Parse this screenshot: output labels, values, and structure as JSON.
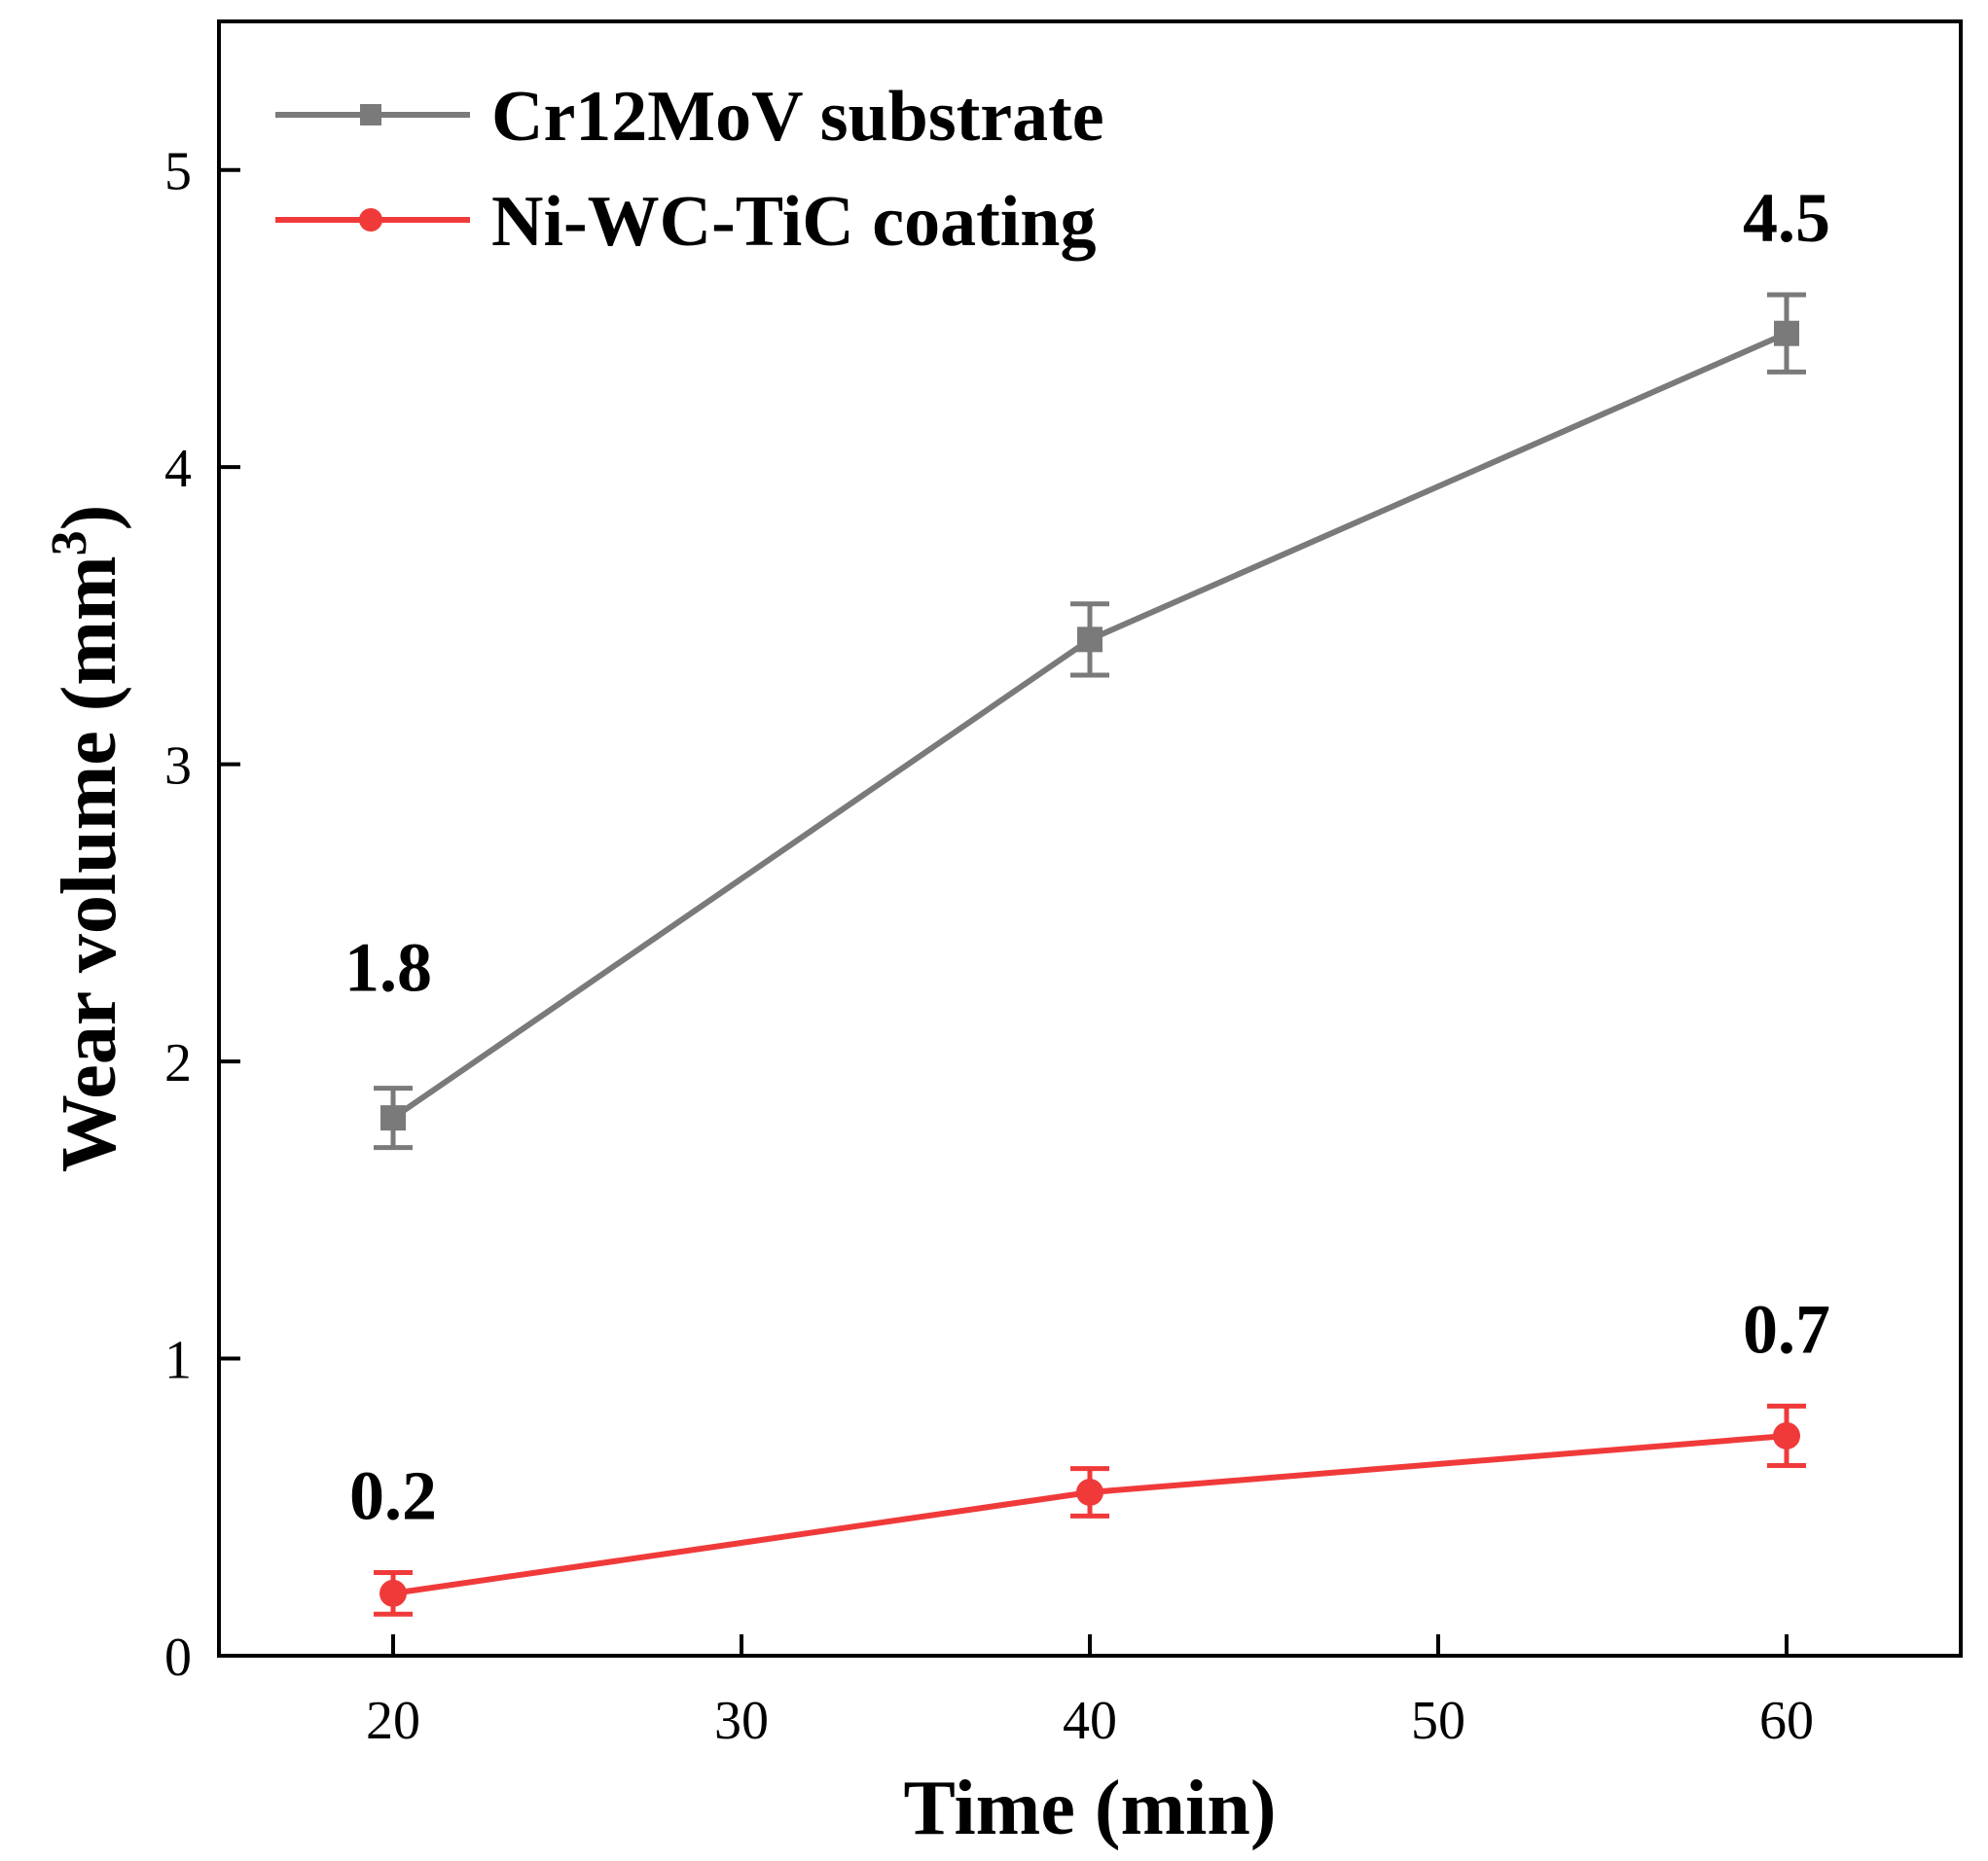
{
  "chart_data": {
    "type": "line",
    "title": "",
    "xlabel": "Time (min)",
    "ylabel_main": "Wear volume (mm",
    "ylabel_sup": "3",
    "ylabel_close": ")",
    "xlim": [
      15,
      65
    ],
    "ylim": [
      0,
      5.5
    ],
    "xticks": [
      20,
      30,
      40,
      50,
      60
    ],
    "yticks": [
      0,
      1,
      2,
      3,
      4,
      5
    ],
    "grid": false,
    "legend_position": "top-left",
    "series": [
      {
        "name": "Cr12MoV substrate",
        "color": "#7a7a7a",
        "marker": "square",
        "x": [
          20,
          40,
          60
        ],
        "y": [
          1.81,
          3.42,
          4.45
        ],
        "error": [
          0.1,
          0.12,
          0.13
        ]
      },
      {
        "name": "Ni-WC-TiC coating",
        "color": "#f03a3a",
        "marker": "circle",
        "x": [
          20,
          40,
          60
        ],
        "y": [
          0.21,
          0.55,
          0.74
        ],
        "error": [
          0.07,
          0.08,
          0.1
        ]
      }
    ],
    "annotations": [
      {
        "text": "1.8",
        "x": 20,
        "y": 1.81,
        "series": 0,
        "place": "above-left"
      },
      {
        "text": "4.5",
        "x": 60,
        "y": 4.45,
        "series": 0,
        "place": "above"
      },
      {
        "text": "0.2",
        "x": 20,
        "y": 0.21,
        "series": 1,
        "place": "above"
      },
      {
        "text": "0.7",
        "x": 60,
        "y": 0.74,
        "series": 1,
        "place": "above"
      }
    ]
  }
}
